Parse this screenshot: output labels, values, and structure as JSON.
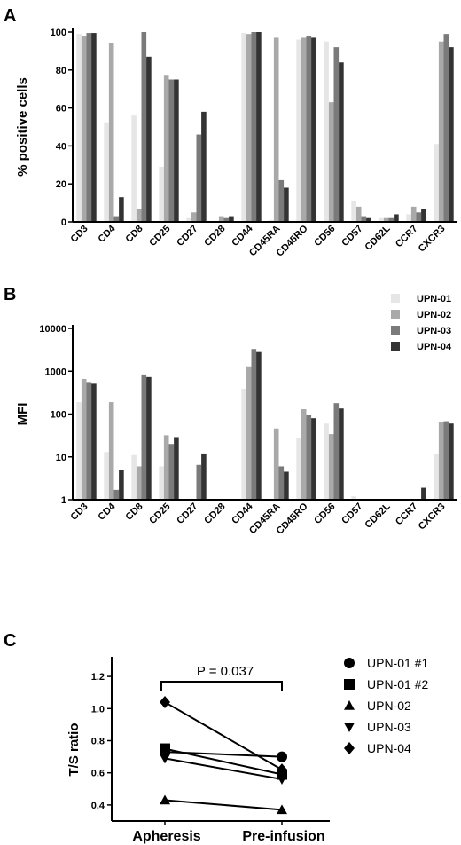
{
  "colors": [
    "#e6e6e6",
    "#a9a9a9",
    "#7a7a7a",
    "#333333"
  ],
  "chart_data": [
    {
      "panel": "A",
      "type": "bar",
      "ylabel": "% positive cells",
      "ylim": [
        0,
        100
      ],
      "yticks": [
        0,
        20,
        40,
        60,
        80,
        100
      ],
      "categories": [
        "CD3",
        "CD4",
        "CD8",
        "CD25",
        "CD27",
        "CD28",
        "CD44",
        "CD45RA",
        "CD45RO",
        "CD56",
        "CD57",
        "CD62L",
        "CCR7",
        "CXCR3"
      ],
      "series": [
        {
          "name": "UPN-01",
          "values": [
            99,
            52,
            56,
            29,
            2,
            0.5,
            99.5,
            1,
            96,
            95,
            11,
            2,
            4,
            41
          ]
        },
        {
          "name": "UPN-02",
          "values": [
            98,
            94,
            7,
            77,
            5,
            3,
            99,
            97,
            97,
            63,
            8,
            2,
            8,
            95
          ]
        },
        {
          "name": "UPN-03",
          "values": [
            99.5,
            3,
            100,
            75,
            46,
            2,
            100,
            22,
            98,
            92,
            3,
            2,
            5,
            99
          ]
        },
        {
          "name": "UPN-04",
          "values": [
            99.5,
            13,
            87,
            75,
            58,
            3,
            100,
            18,
            97,
            84,
            2,
            4,
            7,
            92
          ]
        }
      ]
    },
    {
      "panel": "B",
      "type": "bar",
      "ylabel": "MFI",
      "yscale": "log",
      "ylim": [
        1,
        10000
      ],
      "yticks": [
        "1",
        "10",
        "100",
        "1000",
        "10000"
      ],
      "legend_position": "top-right",
      "categories": [
        "CD3",
        "CD4",
        "CD8",
        "CD25",
        "CD27",
        "CD28",
        "CD44",
        "CD45RA",
        "CD45RO",
        "CD56",
        "CD57",
        "CD62L",
        "CCR7",
        "CXCR3"
      ],
      "series": [
        {
          "name": "UPN-01",
          "values": [
            190,
            13,
            11,
            6,
            1,
            1,
            390,
            1,
            27,
            60,
            1.2,
            1,
            1,
            12
          ]
        },
        {
          "name": "UPN-02",
          "values": [
            660,
            190,
            6,
            32,
            1,
            1,
            1300,
            46,
            130,
            34,
            1,
            1,
            1,
            65
          ]
        },
        {
          "name": "UPN-03",
          "values": [
            560,
            1.7,
            840,
            20,
            6.5,
            1,
            3300,
            6,
            95,
            180,
            1,
            1,
            1,
            68
          ]
        },
        {
          "name": "UPN-04",
          "values": [
            510,
            5,
            730,
            29,
            12,
            1,
            2800,
            4.5,
            80,
            135,
            1,
            1,
            1.9,
            60
          ]
        }
      ]
    },
    {
      "panel": "C",
      "type": "line",
      "ylabel": "T/S ratio",
      "ylim": [
        0.3,
        1.3
      ],
      "yticks": [
        "0.4",
        "0.6",
        "0.8",
        "1.0",
        "1.2"
      ],
      "categories": [
        "Apheresis",
        "Pre-infusion"
      ],
      "annotation": "P = 0.037",
      "legend_position": "right",
      "series": [
        {
          "name": "UPN-01 #1",
          "marker": "circle",
          "values": [
            0.73,
            0.7
          ]
        },
        {
          "name": "UPN-01 #2",
          "marker": "square",
          "values": [
            0.75,
            0.59
          ]
        },
        {
          "name": "UPN-02",
          "marker": "triangle-up",
          "values": [
            0.43,
            0.37
          ]
        },
        {
          "name": "UPN-03",
          "marker": "triangle-down",
          "values": [
            0.69,
            0.56
          ]
        },
        {
          "name": "UPN-04",
          "marker": "diamond",
          "values": [
            1.04,
            0.62
          ]
        }
      ]
    }
  ]
}
